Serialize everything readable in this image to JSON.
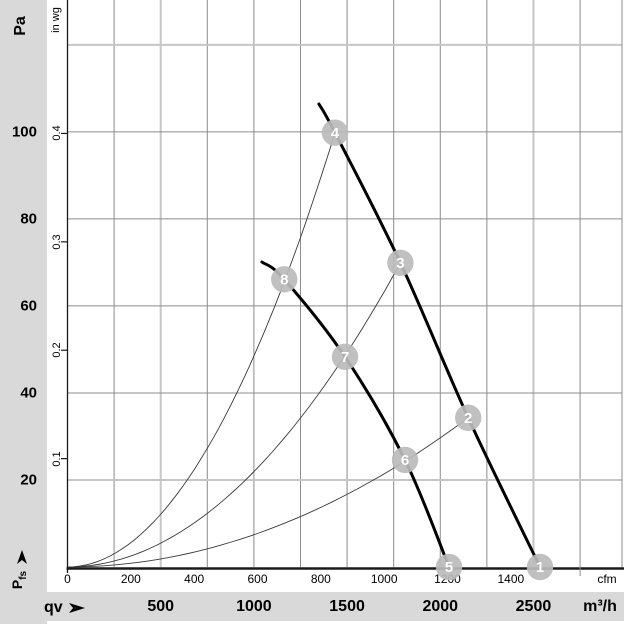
{
  "chart_data": {
    "type": "line",
    "description": "Fan air-performance chart: static pressure vs. volume flow with two speed curves and system-resistance parabolas, operating points 1-8",
    "axes": {
      "y_primary": {
        "unit_label": "Pa",
        "symbol": "P",
        "symbol_sub": "fs",
        "tick_labels": [
          20,
          40,
          60,
          80,
          100
        ],
        "gridline_step_pa": 20,
        "max_pa": 130.3,
        "light_gridlines_pa": [
          20,
          120
        ]
      },
      "y_secondary": {
        "unit_label": "in wg",
        "tick_labels": [
          "0.1",
          "0.2",
          "0.3",
          "0.4"
        ]
      },
      "x_primary": {
        "unit_label": "m³/h",
        "symbol": "qv",
        "tick_labels": [
          500,
          1000,
          1500,
          2000,
          2500
        ],
        "gridline_step_m3h": 250,
        "max_m3h": 2975,
        "light_gridlines_m3h": [
          500,
          2500
        ]
      },
      "x_secondary": {
        "unit_label": "cfm",
        "tick_labels": [
          0,
          200,
          400,
          600,
          800,
          1000,
          1200,
          1400
        ]
      }
    },
    "series": [
      {
        "name": "fan-curve-high-speed",
        "style": "thick",
        "points": [
          [
            1349,
            106.4
          ],
          [
            1435,
            99.8
          ],
          [
            1786,
            69.9
          ],
          [
            2150,
            34.3
          ],
          [
            2535,
            0
          ]
        ]
      },
      {
        "name": "fan-curve-low-speed",
        "style": "thick",
        "points": [
          [
            1043,
            70.1
          ],
          [
            1163,
            66.1
          ],
          [
            1489,
            48.3
          ],
          [
            1811,
            24.6
          ],
          [
            2047,
            0
          ]
        ]
      },
      {
        "name": "system-curve-a",
        "style": "thin-parabola",
        "apex": [
          1435,
          99.8
        ]
      },
      {
        "name": "system-curve-b",
        "style": "thin-parabola",
        "apex": [
          1786,
          69.9
        ]
      },
      {
        "name": "system-curve-c",
        "style": "thin-parabola",
        "apex": [
          2150,
          34.3
        ]
      }
    ],
    "operating_points": [
      {
        "label": "1",
        "q_m3h": 2535,
        "p_pa": 0
      },
      {
        "label": "2",
        "q_m3h": 2150,
        "p_pa": 34.3
      },
      {
        "label": "3",
        "q_m3h": 1786,
        "p_pa": 69.9
      },
      {
        "label": "4",
        "q_m3h": 1435,
        "p_pa": 99.8
      },
      {
        "label": "5",
        "q_m3h": 2047,
        "p_pa": 0
      },
      {
        "label": "6",
        "q_m3h": 1811,
        "p_pa": 24.6
      },
      {
        "label": "7",
        "q_m3h": 1489,
        "p_pa": 48.3
      },
      {
        "label": "8",
        "q_m3h": 1163,
        "p_pa": 66.1
      }
    ],
    "colors": {
      "curve": "#000000",
      "system_curve": "#3a3a3a",
      "grid": "#8c8c8c",
      "grid_light": "#c6c6c6",
      "axis": "#1a1a1a",
      "marker_fill": "#bbbbbb",
      "marker_text": "#ffffff",
      "panel_bg": "#d9d9d9",
      "plot_bg": "#ffffff",
      "text": "#000000"
    },
    "layout_hints": {
      "grid": "on",
      "legend": "none"
    }
  }
}
